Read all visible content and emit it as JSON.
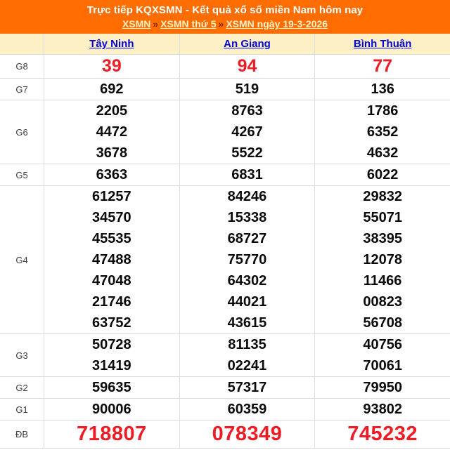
{
  "header": {
    "title": "Trực tiếp KQXSMN - Kết quả xổ số miền Nam hôm nay",
    "separator": "»",
    "breadcrumb": [
      {
        "label": "XSMN"
      },
      {
        "label": "XSMN thứ 5"
      },
      {
        "label": "XSMN ngày 19-3-2026"
      }
    ]
  },
  "colors": {
    "masthead_orange": "#FF6D00",
    "header_cream": "#FCF0C4",
    "prize_red": "#EE1C25",
    "link_blue": "#0000E0",
    "breadcrumb_link": "#FFF2C8",
    "border_gray": "#DCDCDC"
  },
  "table": {
    "provinces": [
      "Tây Ninh",
      "An Giang",
      "Bình Thuận"
    ],
    "prize_groups": [
      {
        "label": "G8",
        "rows": [
          [
            "39",
            "94",
            "77"
          ]
        ]
      },
      {
        "label": "G7",
        "rows": [
          [
            "692",
            "519",
            "136"
          ]
        ]
      },
      {
        "label": "G6",
        "rows": [
          [
            "2205",
            "8763",
            "1786"
          ],
          [
            "4472",
            "4267",
            "6352"
          ],
          [
            "3678",
            "5522",
            "4632"
          ]
        ]
      },
      {
        "label": "G5",
        "rows": [
          [
            "6363",
            "6831",
            "6022"
          ]
        ]
      },
      {
        "label": "G4",
        "rows": [
          [
            "61257",
            "84246",
            "29832"
          ],
          [
            "34570",
            "15338",
            "55071"
          ],
          [
            "45535",
            "68727",
            "38395"
          ],
          [
            "47488",
            "75770",
            "12078"
          ],
          [
            "47048",
            "64302",
            "11466"
          ],
          [
            "21746",
            "44021",
            "00823"
          ],
          [
            "63752",
            "43615",
            "56708"
          ]
        ]
      },
      {
        "label": "G3",
        "rows": [
          [
            "50728",
            "81135",
            "40756"
          ],
          [
            "31419",
            "02241",
            "70061"
          ]
        ]
      },
      {
        "label": "G2",
        "rows": [
          [
            "59635",
            "57317",
            "79950"
          ]
        ]
      },
      {
        "label": "G1",
        "rows": [
          [
            "90006",
            "60359",
            "93802"
          ]
        ]
      },
      {
        "label": "ĐB",
        "rows": [
          [
            "718807",
            "078349",
            "745232"
          ]
        ]
      }
    ]
  }
}
